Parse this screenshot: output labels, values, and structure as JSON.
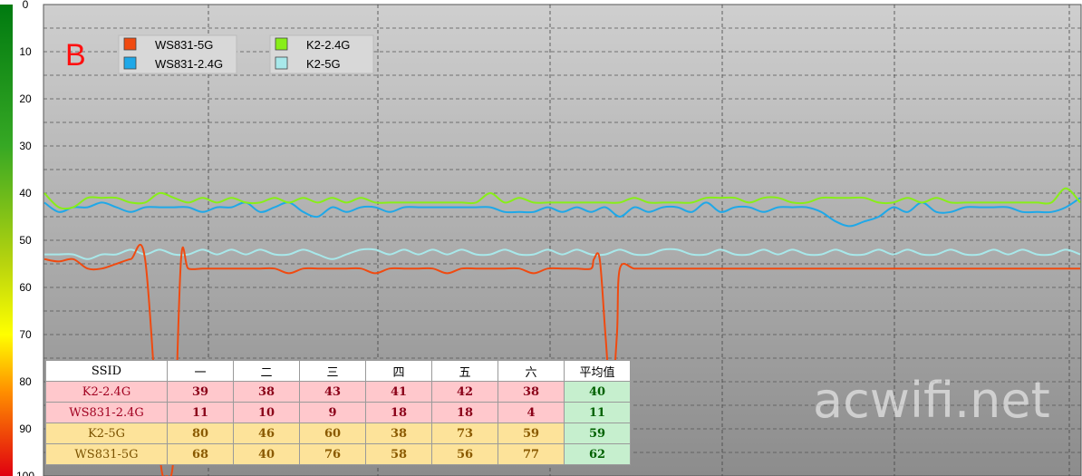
{
  "chart_data": {
    "type": "line",
    "panel_label": "B",
    "watermark": "acwifi.net",
    "ylim": [
      0,
      100
    ],
    "y_ticks": [
      "0",
      "10",
      "20",
      "30",
      "40",
      "50",
      "60",
      "70",
      "80",
      "90",
      "100"
    ],
    "y_inverted": true,
    "grid": true,
    "legend_position": "top-left",
    "series": [
      {
        "name": "WS831-5G",
        "color": "#f04a10",
        "x": [
          0,
          10,
          20,
          30,
          40,
          50,
          60,
          70,
          80,
          85,
          90,
          95,
          100,
          110,
          120,
          130,
          140,
          150,
          160,
          170,
          180,
          190,
          200,
          210,
          220,
          230,
          240,
          250,
          260,
          270,
          280,
          290,
          300,
          310,
          320,
          330,
          340,
          350,
          360,
          370,
          380,
          382,
          386,
          390,
          394,
          398,
          400,
          410,
          420,
          430,
          440,
          450,
          460,
          470,
          480,
          490,
          500,
          510,
          520,
          530,
          540,
          550,
          560,
          570,
          580,
          590,
          600,
          610,
          620,
          630,
          640,
          650,
          660,
          670,
          680,
          690,
          700,
          710,
          720
        ],
        "y": [
          54,
          54.5,
          54,
          56,
          56,
          55,
          54,
          54,
          95,
          100,
          95,
          54,
          56,
          56,
          56,
          56,
          56,
          56,
          56,
          57,
          56,
          56,
          56,
          56,
          56,
          57,
          56,
          56,
          56,
          56,
          57,
          56,
          56,
          56,
          56,
          56,
          57,
          56,
          56,
          56,
          56,
          54,
          54,
          70,
          84,
          70,
          56,
          56,
          56,
          56,
          56,
          56,
          56,
          56,
          56,
          56,
          56,
          56,
          56,
          56,
          56,
          56,
          56,
          56,
          56,
          56,
          56,
          56,
          56,
          56,
          56,
          56,
          56,
          56,
          56,
          56,
          56,
          56,
          56
        ]
      },
      {
        "name": "WS831-2.4G",
        "color": "#1fa8e8",
        "x": [
          0,
          10,
          20,
          30,
          40,
          50,
          60,
          70,
          80,
          90,
          100,
          110,
          120,
          130,
          140,
          150,
          160,
          170,
          180,
          190,
          200,
          210,
          220,
          230,
          240,
          250,
          260,
          270,
          280,
          290,
          300,
          310,
          320,
          330,
          340,
          350,
          360,
          370,
          380,
          390,
          400,
          410,
          420,
          430,
          440,
          450,
          460,
          470,
          480,
          490,
          500,
          510,
          520,
          530,
          540,
          550,
          560,
          570,
          580,
          590,
          600,
          610,
          620,
          630,
          640,
          650,
          660,
          670,
          680,
          690,
          700,
          710,
          720
        ],
        "y": [
          42,
          44,
          43,
          43,
          42,
          43,
          44,
          43,
          43,
          43,
          43,
          44,
          43,
          43,
          42,
          44,
          43,
          42,
          44,
          45,
          43,
          44,
          43,
          43,
          44,
          43,
          43,
          43,
          43,
          43,
          43,
          43,
          44,
          44,
          44,
          43,
          44,
          43,
          44,
          43,
          45,
          43,
          44,
          43,
          43,
          44,
          42,
          44,
          43,
          43,
          44,
          43,
          43,
          43,
          44,
          46,
          47,
          46,
          45,
          43,
          44,
          42,
          44,
          44,
          43,
          43,
          43,
          43,
          44,
          44,
          44,
          43,
          41
        ]
      },
      {
        "name": "K2-2.4G",
        "color": "#88ee18",
        "x": [
          0,
          10,
          20,
          30,
          40,
          50,
          60,
          70,
          80,
          90,
          100,
          110,
          120,
          130,
          140,
          150,
          160,
          170,
          180,
          190,
          200,
          210,
          220,
          230,
          240,
          250,
          260,
          270,
          280,
          290,
          300,
          310,
          320,
          330,
          340,
          350,
          360,
          370,
          380,
          390,
          400,
          410,
          420,
          430,
          440,
          450,
          460,
          470,
          480,
          490,
          500,
          510,
          520,
          530,
          540,
          550,
          560,
          570,
          580,
          590,
          600,
          610,
          620,
          630,
          640,
          650,
          660,
          670,
          680,
          690,
          700,
          710,
          720
        ],
        "y": [
          40,
          43,
          43,
          41,
          41,
          41,
          42,
          42,
          40,
          41,
          42,
          41,
          42,
          41,
          42,
          42,
          41,
          42,
          41,
          42,
          41,
          42,
          41,
          42,
          42,
          42,
          42,
          42,
          42,
          42,
          42,
          40,
          42,
          41,
          42,
          42,
          42,
          42,
          42,
          42,
          42,
          41,
          42,
          42,
          42,
          42,
          41,
          41,
          41,
          42,
          41,
          41,
          42,
          42,
          41,
          41,
          41,
          41,
          42,
          42,
          41,
          42,
          41,
          42,
          42,
          42,
          42,
          42,
          42,
          42,
          42,
          39,
          42
        ]
      },
      {
        "name": "K2-5G",
        "color": "#a8e8ea",
        "x": [
          0,
          10,
          20,
          30,
          40,
          50,
          60,
          70,
          80,
          90,
          100,
          110,
          120,
          130,
          140,
          150,
          160,
          170,
          180,
          190,
          200,
          210,
          220,
          230,
          240,
          250,
          260,
          270,
          280,
          290,
          300,
          310,
          320,
          330,
          340,
          350,
          360,
          370,
          380,
          390,
          400,
          410,
          420,
          430,
          440,
          450,
          460,
          470,
          480,
          490,
          500,
          510,
          520,
          530,
          540,
          550,
          560,
          570,
          580,
          590,
          600,
          610,
          620,
          630,
          640,
          650,
          660,
          670,
          680,
          690,
          700,
          710,
          720
        ],
        "y": [
          53,
          53,
          53,
          54,
          53,
          53,
          52,
          53,
          52,
          53,
          53,
          52,
          53,
          52,
          53,
          52,
          53,
          53,
          52,
          53,
          54,
          53,
          52,
          52,
          53,
          52,
          53,
          52,
          53,
          52,
          53,
          53,
          52,
          53,
          53,
          52,
          53,
          52,
          53,
          53,
          52,
          53,
          53,
          52,
          52,
          53,
          53,
          52,
          53,
          53,
          52,
          53,
          52,
          53,
          53,
          52,
          53,
          53,
          52,
          53,
          52,
          53,
          53,
          52,
          53,
          53,
          52,
          53,
          52,
          53,
          53,
          52,
          53
        ]
      }
    ]
  },
  "table": {
    "headers": [
      "SSID",
      "一",
      "二",
      "三",
      "四",
      "五",
      "六",
      "平均值"
    ],
    "rows": [
      {
        "cells": [
          "K2-2.4G",
          "39",
          "38",
          "43",
          "41",
          "42",
          "38",
          "40"
        ]
      },
      {
        "cells": [
          "WS831-2.4G",
          "11",
          "10",
          "9",
          "18",
          "18",
          "4",
          "11"
        ]
      },
      {
        "cells": [
          "K2-5G",
          "80",
          "46",
          "60",
          "38",
          "73",
          "59",
          "59"
        ]
      },
      {
        "cells": [
          "WS831-5G",
          "68",
          "40",
          "76",
          "58",
          "56",
          "77",
          "62"
        ]
      }
    ]
  }
}
